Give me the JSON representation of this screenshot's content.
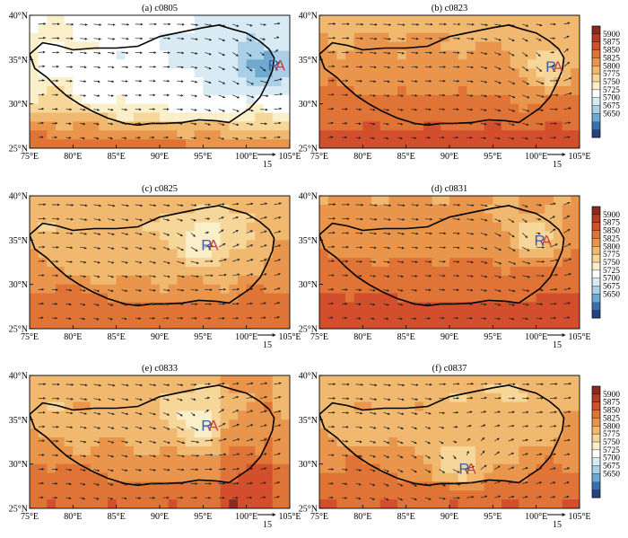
{
  "x_ticks": [
    "75°E",
    "80°E",
    "85°E",
    "90°E",
    "95°E",
    "100°E",
    "105°E"
  ],
  "y_ticks": [
    "25°N",
    "30°N",
    "35°N",
    "40°N"
  ],
  "colorbar": {
    "levels": [
      "5900",
      "5875",
      "5850",
      "5825",
      "5800",
      "5775",
      "5750",
      "5725",
      "5700",
      "5675",
      "5650"
    ],
    "colors": [
      "#8c2a20",
      "#b63a25",
      "#d24e2c",
      "#e07437",
      "#e9964c",
      "#f1b870",
      "#f7d699",
      "#fbefc9",
      "#ffffff",
      "#d8ebf5",
      "#a9d0e6",
      "#6fa9d0",
      "#3a6fa8",
      "#24447e"
    ]
  },
  "vector_reference": "15",
  "panels": [
    {
      "title": "(a) c0805",
      "marker": [
        103.2,
        34.4
      ],
      "low_center": [
        102.5,
        34.0
      ],
      "base_level": 5780
    },
    {
      "title": "(b) c0823",
      "marker": [
        101.8,
        34.2
      ],
      "low_center": [
        101.5,
        34.0
      ],
      "base_level": 5850
    },
    {
      "title": "(c) c0825",
      "marker": [
        95.5,
        34.5
      ],
      "low_center": [
        95.0,
        34.5
      ],
      "base_level": 5835
    },
    {
      "title": "(d) c0831",
      "marker": [
        100.5,
        35.0
      ],
      "low_center": [
        100.0,
        35.2
      ],
      "base_level": 5860
    },
    {
      "title": "(e) c0833",
      "marker": [
        95.5,
        34.4
      ],
      "low_center": [
        94.5,
        34.6
      ],
      "base_level": 5840
    },
    {
      "title": "(f) c0837",
      "marker": [
        91.8,
        29.5
      ],
      "low_center": [
        91.5,
        30.0
      ],
      "base_level": 5840
    }
  ]
}
